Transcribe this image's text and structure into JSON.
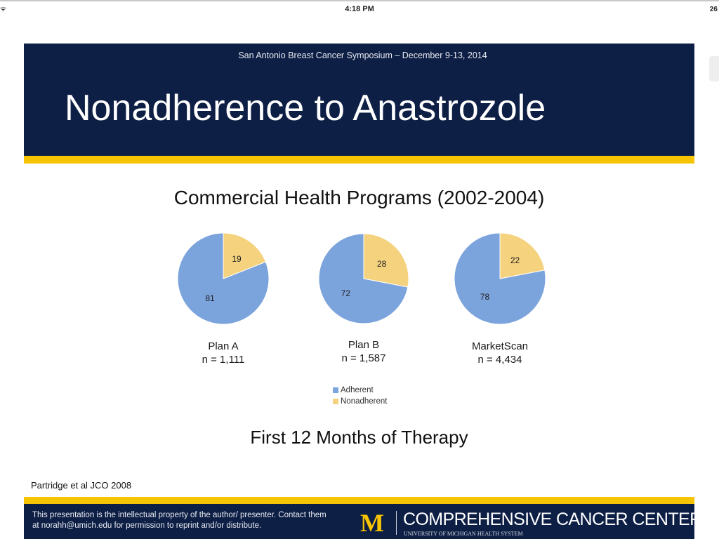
{
  "status_bar": {
    "left": "ᯤ",
    "time": "4:18 PM",
    "right": "26"
  },
  "slide": {
    "symposium": "San Antonio Breast Cancer Symposium – December 9-13, 2014",
    "title": "Nonadherence to Anastrozole",
    "footnote": "First 12 Months of Therapy",
    "citation": "Partridge et al JCO 2008"
  },
  "footer": {
    "text": "This presentation is the intellectual property of the author/ presenter.  Contact them at norahh@umich.edu for permission to reprint and/or distribute.",
    "center_name": "COMPREHENSIVE CANCER CENTER",
    "center_sub": "UNIVERSITY OF MICHIGAN HEALTH SYSTEM",
    "logo_letter": "M"
  },
  "colors": {
    "navy": "#0e1f45",
    "gold": "#f6c400",
    "adherent": "#7ba3dc",
    "nonadherent": "#f4d27e"
  },
  "chart_data": {
    "type": "pie",
    "title": "Commercial Health Programs (2002-2004)",
    "legend": {
      "position": "bottom-center",
      "entries": [
        "Adherent",
        "Nonadherent"
      ]
    },
    "pies": [
      {
        "name": "Plan A",
        "n_label": "n = 1,111",
        "slices": [
          {
            "label": "Adherent",
            "value": 81
          },
          {
            "label": "Nonadherent",
            "value": 19
          }
        ]
      },
      {
        "name": "Plan B",
        "n_label": "n = 1,587",
        "slices": [
          {
            "label": "Adherent",
            "value": 72
          },
          {
            "label": "Nonadherent",
            "value": 28
          }
        ]
      },
      {
        "name": "MarketScan",
        "n_label": "n = 4,434",
        "slices": [
          {
            "label": "Adherent",
            "value": 78
          },
          {
            "label": "Nonadherent",
            "value": 22
          }
        ]
      }
    ]
  }
}
